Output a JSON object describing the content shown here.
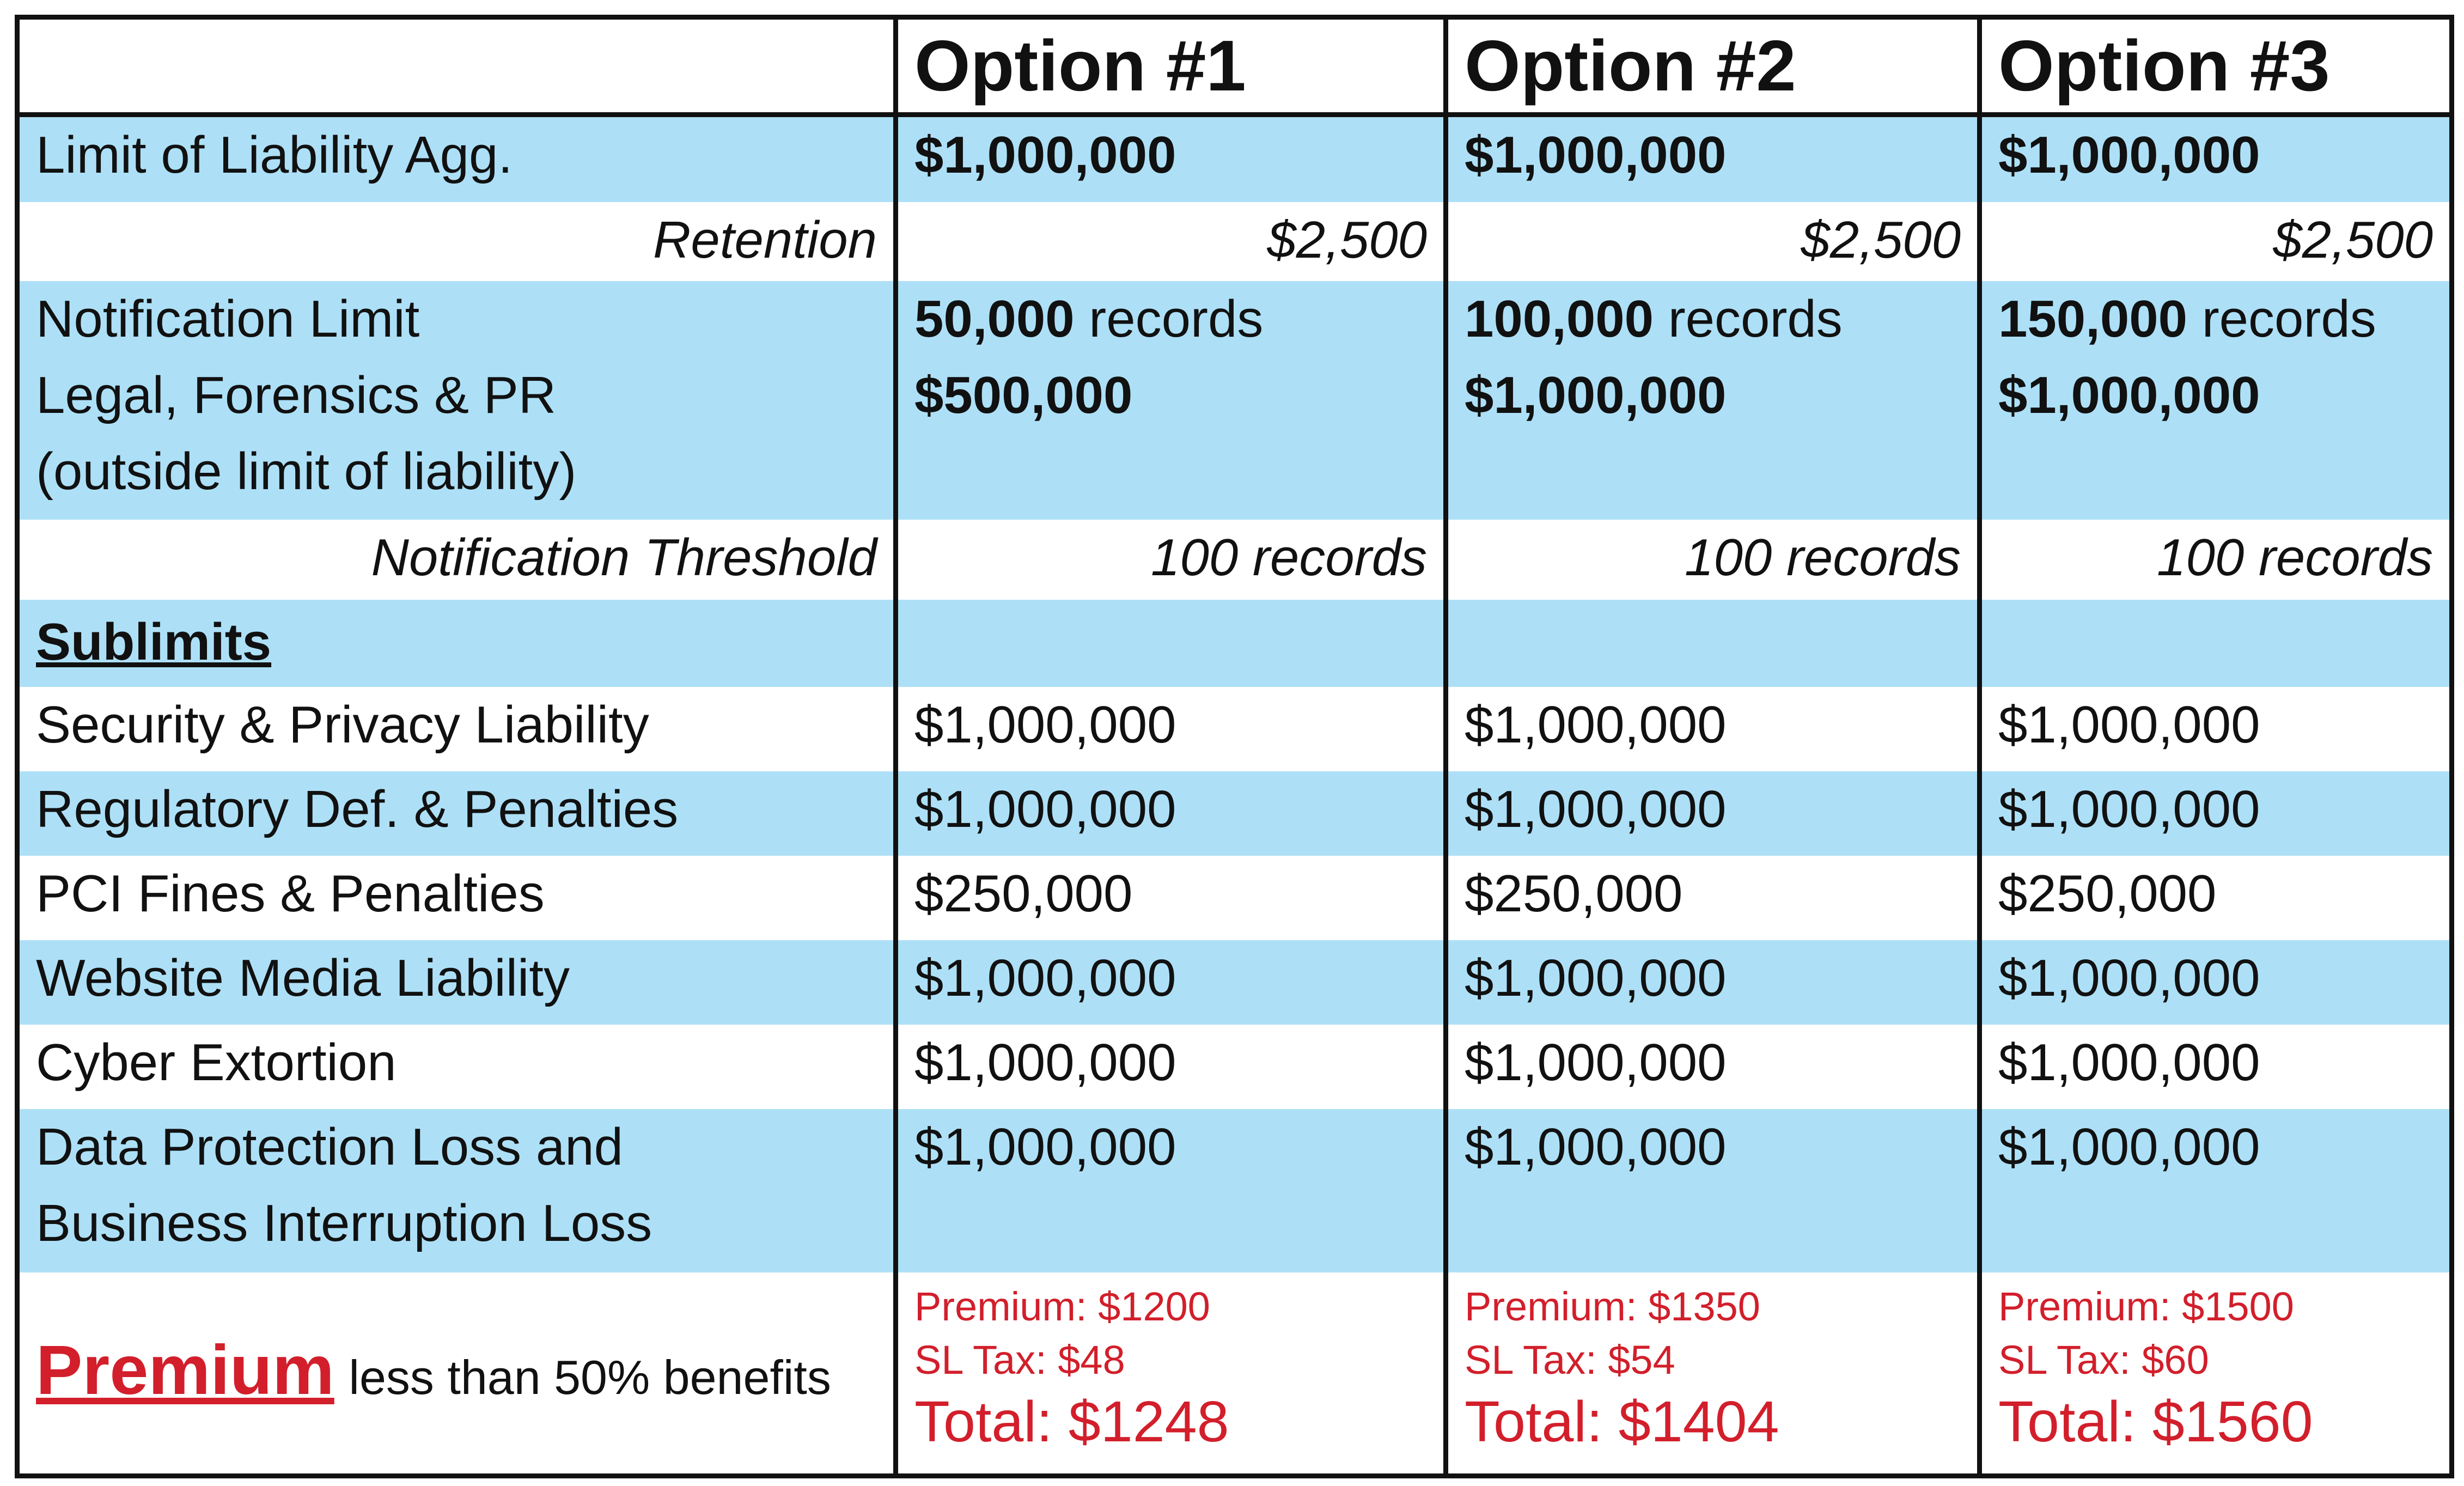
{
  "header": {
    "options": [
      "Option #1",
      "Option #2",
      "Option #3"
    ]
  },
  "limit_of_liability": {
    "label": "Limit of Liability Agg.",
    "values": [
      "$1,000,000",
      "$1,000,000",
      "$1,000,000"
    ]
  },
  "retention": {
    "label": "Retention",
    "values": [
      "$2,500",
      "$2,500",
      "$2,500"
    ]
  },
  "notification": {
    "label_lines": [
      "Notification Limit",
      "Legal, Forensics & PR",
      "(outside limit of liability)"
    ],
    "records_counts": [
      "50,000",
      "100,000",
      "150,000"
    ],
    "records_word": "records",
    "amounts": [
      "$500,000",
      "$1,000,000",
      "$1,000,000"
    ]
  },
  "notification_threshold": {
    "label": "Notification Threshold",
    "values": [
      "100 records",
      "100 records",
      "100 records"
    ]
  },
  "sublimits": {
    "heading": "Sublimits",
    "rows": [
      {
        "label": "Security & Privacy Liability",
        "values": [
          "$1,000,000",
          "$1,000,000",
          "$1,000,000"
        ]
      },
      {
        "label": "Regulatory Def. & Penalties",
        "values": [
          "$1,000,000",
          "$1,000,000",
          "$1,000,000"
        ]
      },
      {
        "label": "PCI Fines & Penalties",
        "values": [
          "$250,000",
          "$250,000",
          "$250,000"
        ]
      },
      {
        "label": "Website Media Liability",
        "values": [
          "$1,000,000",
          "$1,000,000",
          "$1,000,000"
        ]
      },
      {
        "label": "Cyber Extortion",
        "values": [
          "$1,000,000",
          "$1,000,000",
          "$1,000,000"
        ]
      },
      {
        "label_lines": [
          "Data Protection Loss and",
          "Business Interruption Loss"
        ],
        "values": [
          "$1,000,000",
          "$1,000,000",
          "$1,000,000"
        ]
      }
    ]
  },
  "premium": {
    "label": "Premium",
    "note": "less than 50% benefits",
    "options": [
      {
        "premium": "Premium: $1200",
        "tax": "SL Tax: $48",
        "total": "Total: $1248"
      },
      {
        "premium": "Premium: $1350",
        "tax": "SL Tax: $54",
        "total": "Total: $1404"
      },
      {
        "premium": "Premium: $1500",
        "tax": "SL Tax: $60",
        "total": "Total: $1560"
      }
    ]
  },
  "colors": {
    "band_blue": "#ade0f7",
    "premium_red": "#d21f2b",
    "grid_black": "#111111"
  }
}
